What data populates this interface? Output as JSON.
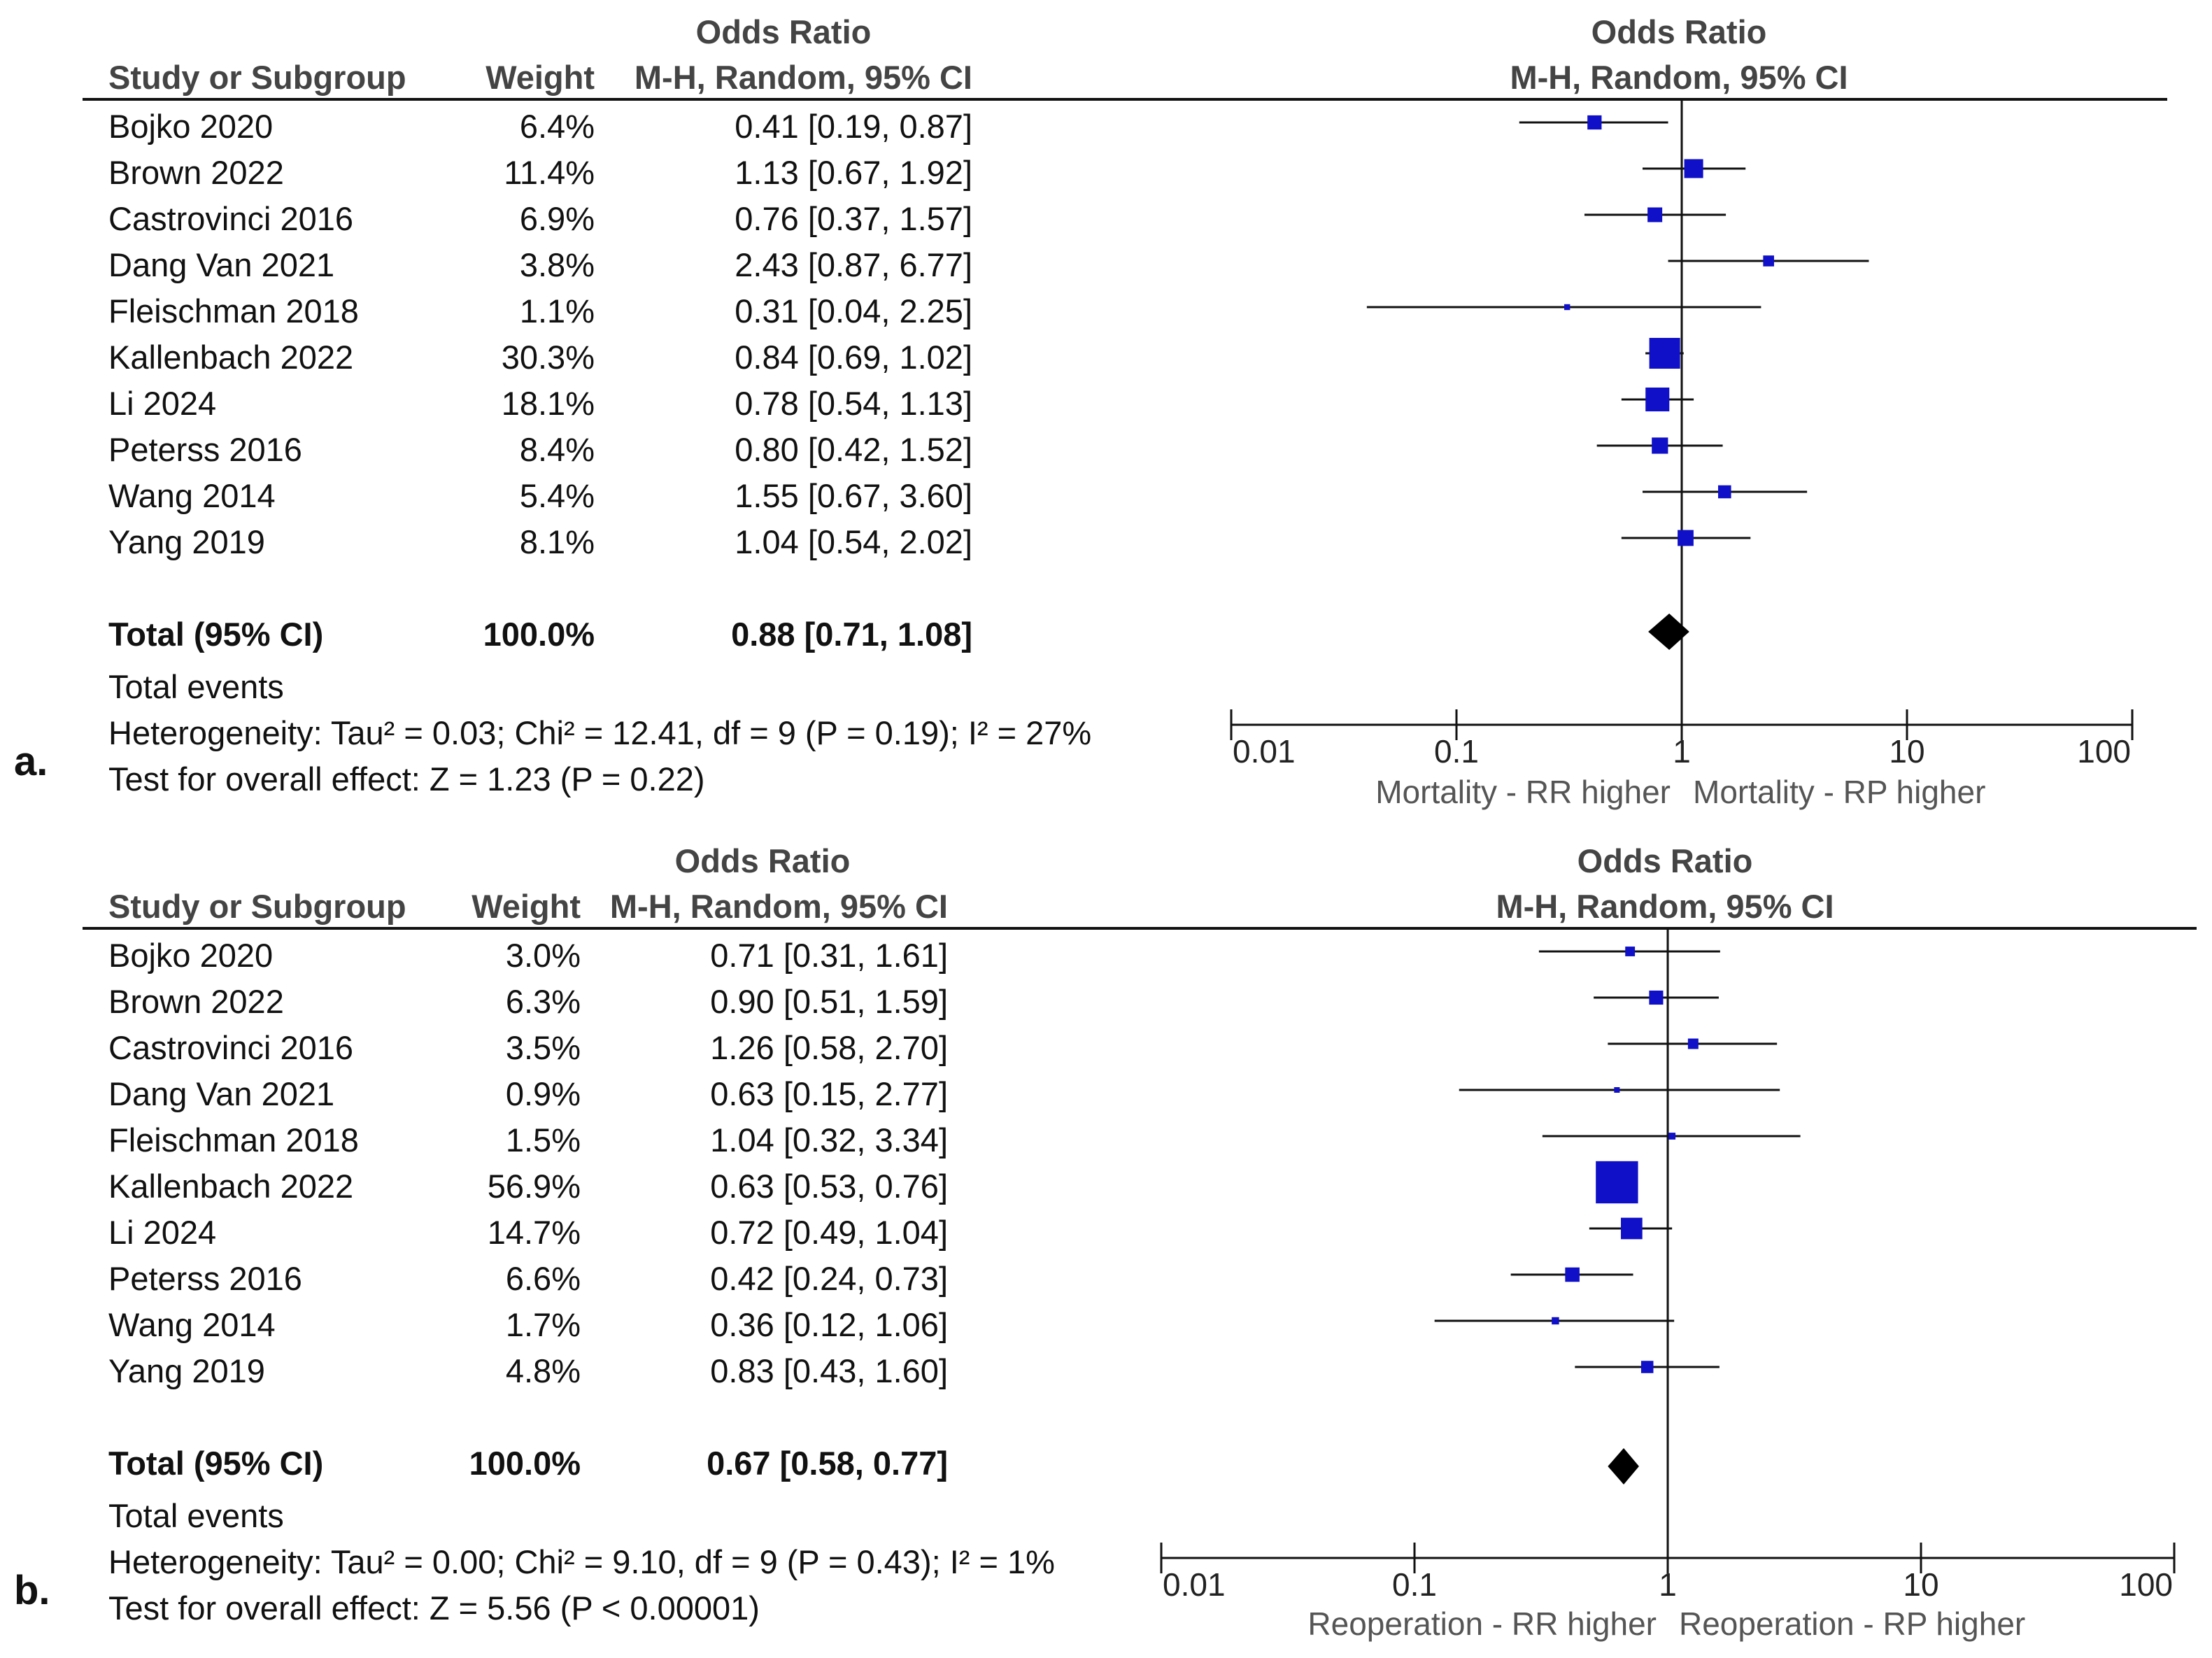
{
  "chart_data": [
    {
      "type": "forest",
      "panel_label": "a.",
      "title_left": "Odds Ratio",
      "title_left_sub": "M-H, Random, 95% CI",
      "title_right": "Odds Ratio",
      "title_right_sub": "M-H, Random, 95% CI",
      "col_study": "Study or Subgroup",
      "col_weight": "Weight",
      "studies": [
        {
          "name": "Bojko  2020",
          "weight": "6.4%",
          "ci_text": "0.41 [0.19, 0.87]",
          "or": 0.41,
          "lo": 0.19,
          "hi": 0.87,
          "w": 6.4
        },
        {
          "name": "Brown 2022",
          "weight": "11.4%",
          "ci_text": "1.13 [0.67, 1.92]",
          "or": 1.13,
          "lo": 0.67,
          "hi": 1.92,
          "w": 11.4
        },
        {
          "name": "Castrovinci 2016",
          "weight": "6.9%",
          "ci_text": "0.76 [0.37, 1.57]",
          "or": 0.76,
          "lo": 0.37,
          "hi": 1.57,
          "w": 6.9
        },
        {
          "name": "Dang Van 2021",
          "weight": "3.8%",
          "ci_text": "2.43 [0.87, 6.77]",
          "or": 2.43,
          "lo": 0.87,
          "hi": 6.77,
          "w": 3.8
        },
        {
          "name": "Fleischman 2018",
          "weight": "1.1%",
          "ci_text": "0.31 [0.04, 2.25]",
          "or": 0.31,
          "lo": 0.04,
          "hi": 2.25,
          "w": 1.1
        },
        {
          "name": "Kallenbach 2022",
          "weight": "30.3%",
          "ci_text": "0.84 [0.69, 1.02]",
          "or": 0.84,
          "lo": 0.69,
          "hi": 1.02,
          "w": 30.3
        },
        {
          "name": "Li 2024",
          "weight": "18.1%",
          "ci_text": "0.78 [0.54, 1.13]",
          "or": 0.78,
          "lo": 0.54,
          "hi": 1.13,
          "w": 18.1
        },
        {
          "name": "Peterss 2016",
          "weight": "8.4%",
          "ci_text": "0.80 [0.42, 1.52]",
          "or": 0.8,
          "lo": 0.42,
          "hi": 1.52,
          "w": 8.4
        },
        {
          "name": "Wang 2014",
          "weight": "5.4%",
          "ci_text": "1.55 [0.67, 3.60]",
          "or": 1.55,
          "lo": 0.67,
          "hi": 3.6,
          "w": 5.4
        },
        {
          "name": "Yang 2019",
          "weight": "8.1%",
          "ci_text": "1.04 [0.54, 2.02]",
          "or": 1.04,
          "lo": 0.54,
          "hi": 2.02,
          "w": 8.1
        }
      ],
      "total": {
        "label": "Total (95% CI)",
        "weight": "100.0%",
        "ci_text": "0.88 [0.71, 1.08]",
        "or": 0.88,
        "lo": 0.71,
        "hi": 1.08
      },
      "total_events": "Total events",
      "heterogeneity": "Heterogeneity: Tau² = 0.03; Chi² = 12.41, df = 9 (P = 0.19); I² = 27%",
      "overall_effect": "Test for overall effect: Z = 1.23 (P = 0.22)",
      "x_scale": "log",
      "xlim": [
        0.01,
        100
      ],
      "x_ticks": [
        "0.01",
        "0.1",
        "1",
        "10",
        "100"
      ],
      "favours_left": "Mortality - RR higher",
      "favours_right": "Mortality - RP higher"
    },
    {
      "type": "forest",
      "panel_label": "b.",
      "title_left": "Odds Ratio",
      "title_left_sub": "M-H, Random, 95% CI",
      "title_right": "Odds Ratio",
      "title_right_sub": "M-H, Random, 95% CI",
      "col_study": "Study or Subgroup",
      "col_weight": "Weight",
      "studies": [
        {
          "name": "Bojko  2020",
          "weight": "3.0%",
          "ci_text": "0.71 [0.31, 1.61]",
          "or": 0.71,
          "lo": 0.31,
          "hi": 1.61,
          "w": 3.0
        },
        {
          "name": "Brown 2022",
          "weight": "6.3%",
          "ci_text": "0.90 [0.51, 1.59]",
          "or": 0.9,
          "lo": 0.51,
          "hi": 1.59,
          "w": 6.3
        },
        {
          "name": "Castrovinci 2016",
          "weight": "3.5%",
          "ci_text": "1.26 [0.58, 2.70]",
          "or": 1.26,
          "lo": 0.58,
          "hi": 2.7,
          "w": 3.5
        },
        {
          "name": "Dang Van 2021",
          "weight": "0.9%",
          "ci_text": "0.63 [0.15, 2.77]",
          "or": 0.63,
          "lo": 0.15,
          "hi": 2.77,
          "w": 0.9
        },
        {
          "name": "Fleischman 2018",
          "weight": "1.5%",
          "ci_text": "1.04 [0.32, 3.34]",
          "or": 1.04,
          "lo": 0.32,
          "hi": 3.34,
          "w": 1.5
        },
        {
          "name": "Kallenbach 2022",
          "weight": "56.9%",
          "ci_text": "0.63 [0.53, 0.76]",
          "or": 0.63,
          "lo": 0.53,
          "hi": 0.76,
          "w": 56.9
        },
        {
          "name": "Li 2024",
          "weight": "14.7%",
          "ci_text": "0.72 [0.49, 1.04]",
          "or": 0.72,
          "lo": 0.49,
          "hi": 1.04,
          "w": 14.7
        },
        {
          "name": "Peterss 2016",
          "weight": "6.6%",
          "ci_text": "0.42 [0.24, 0.73]",
          "or": 0.42,
          "lo": 0.24,
          "hi": 0.73,
          "w": 6.6
        },
        {
          "name": "Wang 2014",
          "weight": "1.7%",
          "ci_text": "0.36 [0.12, 1.06]",
          "or": 0.36,
          "lo": 0.12,
          "hi": 1.06,
          "w": 1.7
        },
        {
          "name": "Yang 2019",
          "weight": "4.8%",
          "ci_text": "0.83 [0.43, 1.60]",
          "or": 0.83,
          "lo": 0.43,
          "hi": 1.6,
          "w": 4.8
        }
      ],
      "total": {
        "label": "Total (95% CI)",
        "weight": "100.0%",
        "ci_text": "0.67 [0.58, 0.77]",
        "or": 0.67,
        "lo": 0.58,
        "hi": 0.77
      },
      "total_events": "Total events",
      "heterogeneity": "Heterogeneity: Tau² = 0.00; Chi² = 9.10, df = 9 (P = 0.43); I² = 1%",
      "overall_effect": "Test for overall effect: Z = 5.56 (P < 0.00001)",
      "x_scale": "log",
      "xlim": [
        0.01,
        100
      ],
      "x_ticks": [
        "0.01",
        "0.1",
        "1",
        "10",
        "100"
      ],
      "favours_left": "Reoperation - RR higher",
      "favours_right": "Reoperation - RP higher"
    }
  ],
  "colors": {
    "marker": "#1010c8",
    "line": "#111111",
    "axis_label": "#555555"
  }
}
